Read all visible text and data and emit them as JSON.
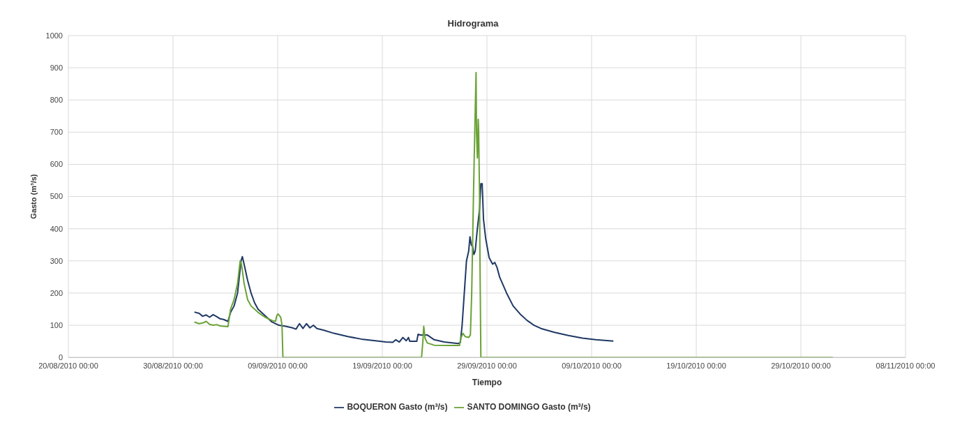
{
  "chart_data": {
    "type": "line",
    "title": "Hidrograma",
    "xlabel": "Tiempo",
    "ylabel": "Gasto (m³/s)",
    "series": [
      {
        "name": "BOQUERON Gasto (m³/s)",
        "color": "#1f3864",
        "x": [
          "2010-09-01T01:00",
          "2010-09-01T12:00",
          "2010-09-01T20:00",
          "2010-09-02T04:00",
          "2010-09-02T12:00",
          "2010-09-02T20:00",
          "2010-09-03T04:00",
          "2010-09-03T12:00",
          "2010-09-03T20:00",
          "2010-09-04T06:00",
          "2010-09-04T12:00",
          "2010-09-04T20:00",
          "2010-09-05T04:00",
          "2010-09-05T12:00",
          "2010-09-05T15:00",
          "2010-09-05T19:00",
          "2010-09-06T03:00",
          "2010-09-06T11:00",
          "2010-09-06T19:00",
          "2010-09-07T03:00",
          "2010-09-07T19:00",
          "2010-09-08T11:00",
          "2010-09-09T03:00",
          "2010-09-09T18:00",
          "2010-09-10T10:00",
          "2010-09-10T18:00",
          "2010-09-11T02:00",
          "2010-09-11T10:00",
          "2010-09-11T18:00",
          "2010-09-12T02:00",
          "2010-09-12T10:00",
          "2010-09-12T18:00",
          "2010-09-13T09:00",
          "2010-09-14T09:00",
          "2010-09-15T17:00",
          "2010-09-17T00:00",
          "2010-09-18T08:00",
          "2010-09-19T08:00",
          "2010-09-20T00:00",
          "2010-09-20T07:00",
          "2010-09-20T15:00",
          "2010-09-20T23:00",
          "2010-09-21T07:00",
          "2010-09-21T12:00",
          "2010-09-21T15:00",
          "2010-09-22T07:00",
          "2010-09-22T10:00",
          "2010-09-22T15:00",
          "2010-09-23T07:00",
          "2010-09-23T23:00",
          "2010-09-24T22:00",
          "2010-09-26T06:00",
          "2010-09-26T11:00",
          "2010-09-26T15:00",
          "2010-09-26T20:00",
          "2010-09-27T01:00",
          "2010-09-27T06:00",
          "2010-09-27T09:00",
          "2010-09-27T12:00",
          "2010-09-27T15:00",
          "2010-09-27T18:00",
          "2010-09-27T21:00",
          "2010-09-28T02:00",
          "2010-09-28T07:00",
          "2010-09-28T10:00",
          "2010-09-28T13:00",
          "2010-09-28T16:00",
          "2010-09-28T21:00",
          "2010-09-29T05:00",
          "2010-09-29T13:00",
          "2010-09-29T18:00",
          "2010-09-29T23:00",
          "2010-09-30T05:00",
          "2010-09-30T21:00",
          "2010-10-01T12:00",
          "2010-10-02T04:00",
          "2010-10-02T20:00",
          "2010-10-03T12:00",
          "2010-10-04T04:00",
          "2010-10-05T11:00",
          "2010-10-06T19:00",
          "2010-10-08T03:00",
          "2010-10-09T10:00",
          "2010-10-11T02:00"
        ],
        "values": [
          141,
          137,
          128,
          132,
          125,
          133,
          127,
          120,
          118,
          112,
          140,
          160,
          200,
          300,
          313,
          290,
          240,
          200,
          170,
          150,
          130,
          110,
          100,
          97,
          92,
          88,
          105,
          90,
          105,
          92,
          100,
          90,
          85,
          75,
          65,
          57,
          52,
          48,
          47,
          55,
          48,
          62,
          52,
          62,
          50,
          50,
          72,
          70,
          70,
          55,
          48,
          43,
          47,
          100,
          200,
          300,
          330,
          375,
          350,
          345,
          320,
          330,
          400,
          460,
          540,
          540,
          430,
          370,
          310,
          290,
          295,
          280,
          250,
          200,
          160,
          135,
          115,
          100,
          90,
          78,
          68,
          60,
          55,
          51
        ]
      },
      {
        "name": "SANTO DOMINGO Gasto (m³/s)",
        "color": "#6aa236",
        "x": [
          "2010-09-01T01:00",
          "2010-09-01T12:00",
          "2010-09-01T20:00",
          "2010-09-02T04:00",
          "2010-09-02T12:00",
          "2010-09-02T20:00",
          "2010-09-03T04:00",
          "2010-09-03T12:00",
          "2010-09-03T20:00",
          "2010-09-04T06:00",
          "2010-09-04T12:00",
          "2010-09-04T20:00",
          "2010-09-05T04:00",
          "2010-09-05T10:00",
          "2010-09-05T13:00",
          "2010-09-05T19:00",
          "2010-09-06T03:00",
          "2010-09-06T11:00",
          "2010-09-07T03:00",
          "2010-09-07T19:00",
          "2010-09-08T11:00",
          "2010-09-08T19:00",
          "2010-09-08T22:00",
          "2010-09-09T01:00",
          "2010-09-09T07:00",
          "2010-09-09T10:00",
          "2010-09-09T12:00",
          "2010-09-22T18:00",
          "2010-09-22T21:00",
          "2010-09-22T23:00",
          "2010-09-23T02:00",
          "2010-09-23T07:00",
          "2010-09-23T23:00",
          "2010-09-25T14:00",
          "2010-09-26T09:00",
          "2010-09-26T12:00",
          "2010-09-26T17:00",
          "2010-09-26T22:00",
          "2010-09-27T06:00",
          "2010-09-27T10:00",
          "2010-09-27T13:00",
          "2010-09-27T17:00",
          "2010-09-27T20:00",
          "2010-09-27T23:00",
          "2010-09-28T00:00",
          "2010-09-28T02:00",
          "2010-09-28T04:00",
          "2010-09-28T05:00",
          "2010-09-28T07:00",
          "2010-09-28T08:00",
          "2010-09-28T10:00",
          "2010-11-01T01:00"
        ],
        "values": [
          110,
          105,
          107,
          112,
          103,
          100,
          102,
          98,
          97,
          96,
          150,
          180,
          230,
          300,
          290,
          230,
          180,
          160,
          140,
          125,
          115,
          112,
          130,
          135,
          125,
          100,
          0,
          0,
          50,
          97,
          60,
          45,
          38,
          37,
          37,
          60,
          75,
          65,
          62,
          70,
          200,
          500,
          700,
          885,
          700,
          620,
          740,
          700,
          500,
          300,
          0,
          0
        ]
      }
    ],
    "xlim": [
      "2010-08-20T00:00",
      "2010-11-08T00:00"
    ],
    "xticks": [
      {
        "value": "2010-08-20T00:00",
        "label": "20/08/2010 00:00"
      },
      {
        "value": "2010-08-30T00:00",
        "label": "30/08/2010 00:00"
      },
      {
        "value": "2010-09-09T00:00",
        "label": "09/09/2010 00:00"
      },
      {
        "value": "2010-09-19T00:00",
        "label": "19/09/2010 00:00"
      },
      {
        "value": "2010-09-29T00:00",
        "label": "29/09/2010 00:00"
      },
      {
        "value": "2010-10-09T00:00",
        "label": "09/10/2010 00:00"
      },
      {
        "value": "2010-10-19T00:00",
        "label": "19/10/2010 00:00"
      },
      {
        "value": "2010-10-29T00:00",
        "label": "29/10/2010 00:00"
      },
      {
        "value": "2010-11-08T00:00",
        "label": "08/11/2010 00:00"
      }
    ],
    "ylim": [
      0,
      1000
    ],
    "yticks": [
      0,
      100,
      200,
      300,
      400,
      500,
      600,
      700,
      800,
      900,
      1000
    ],
    "grid": true,
    "legend": "bottom",
    "marker": "none",
    "line_style": "solid"
  }
}
